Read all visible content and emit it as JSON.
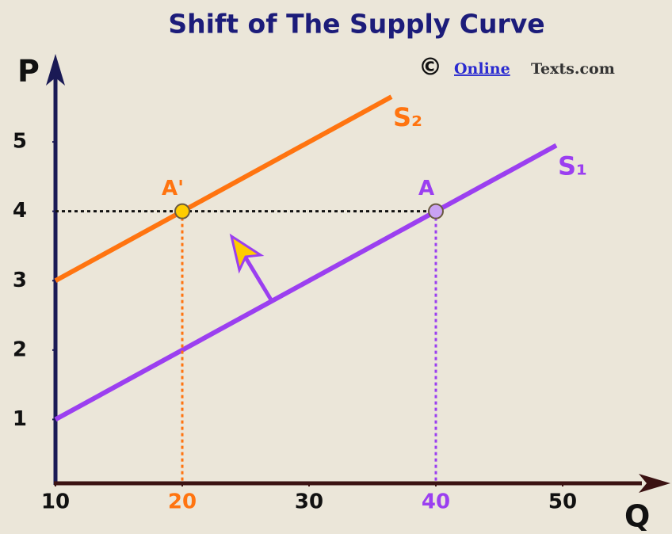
{
  "chart_data": {
    "type": "line",
    "title": "Shift of The Supply Curve",
    "credit": {
      "symbol": "©",
      "link": "Online",
      "rest": "Texts.com"
    },
    "x_label": "Q",
    "y_label": "P",
    "xlim": [
      10,
      58
    ],
    "ylim": [
      0,
      6.2
    ],
    "xticks": [
      10,
      20,
      30,
      40,
      50
    ],
    "yticks": [
      1,
      2,
      3,
      4,
      5
    ],
    "series": [
      {
        "name": "S₁",
        "color": "#9b3ff0",
        "x": [
          10,
          49.5
        ],
        "values": [
          1,
          4.95
        ]
      },
      {
        "name": "S₂",
        "color": "#ff7410",
        "x": [
          10,
          36.5
        ],
        "values": [
          3,
          5.65
        ]
      }
    ],
    "points": [
      {
        "label": "A'",
        "x": 20,
        "y": 4,
        "color": "#ff7410",
        "fill": "#ffcc00"
      },
      {
        "label": "A",
        "x": 40,
        "y": 4,
        "color": "#9b3ff0",
        "fill": "#c9a2f2"
      }
    ]
  }
}
